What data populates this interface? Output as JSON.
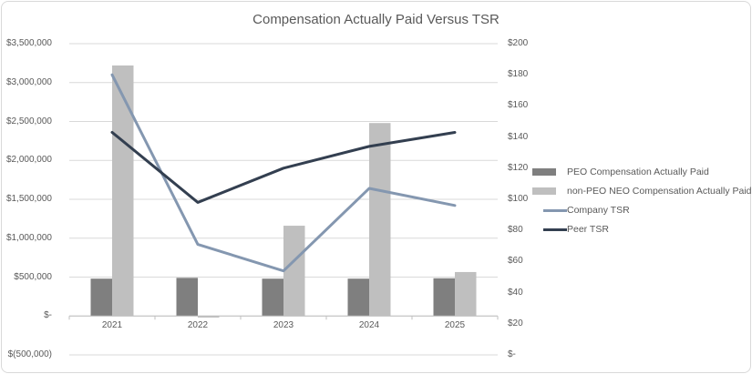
{
  "chart_data": {
    "type": "combo",
    "title": "Compensation Actually Paid Versus TSR",
    "categories": [
      "2021",
      "2022",
      "2023",
      "2024",
      "2025"
    ],
    "series": [
      {
        "name": "PEO Compensation Actually Paid",
        "type": "bar",
        "axis": "left",
        "color": "#7f7f7f",
        "values": [
          480000,
          490000,
          480000,
          480000,
          485000
        ]
      },
      {
        "name": "non-PEO NEO Compensation Actually Paid",
        "type": "bar",
        "axis": "left",
        "color": "#bfbfbf",
        "values": [
          3220000,
          -20000,
          1160000,
          2480000,
          565000
        ]
      },
      {
        "name": "Company TSR",
        "type": "line",
        "axis": "right",
        "color": "#8497b0",
        "values": [
          180,
          71,
          54,
          107,
          96
        ]
      },
      {
        "name": "Peer TSR",
        "type": "line",
        "axis": "right",
        "color": "#333f50",
        "values": [
          143,
          98,
          120,
          134,
          143
        ]
      }
    ],
    "left_axis": {
      "min": -500000,
      "max": 3500000,
      "step": 500000,
      "tick_labels": [
        "$3,500,000",
        "$3,000,000",
        "$2,500,000",
        "$2,000,000",
        "$1,500,000",
        "$1,000,000",
        "$500,000",
        "$-",
        "$(500,000)"
      ]
    },
    "right_axis": {
      "min": 0,
      "max": 200,
      "step": 20,
      "tick_labels": [
        "$200",
        "$180",
        "$160",
        "$140",
        "$120",
        "$100",
        "$80",
        "$60",
        "$40",
        "$20",
        "$-"
      ]
    },
    "legend_position": "right",
    "grid": true,
    "colors": {
      "title_text": "#595959",
      "axis_text": "#595959",
      "gridline": "#d9d9d9",
      "axis_line": "#bfbfbf",
      "frame_border": "#d9d9d9",
      "background": "#ffffff"
    }
  }
}
